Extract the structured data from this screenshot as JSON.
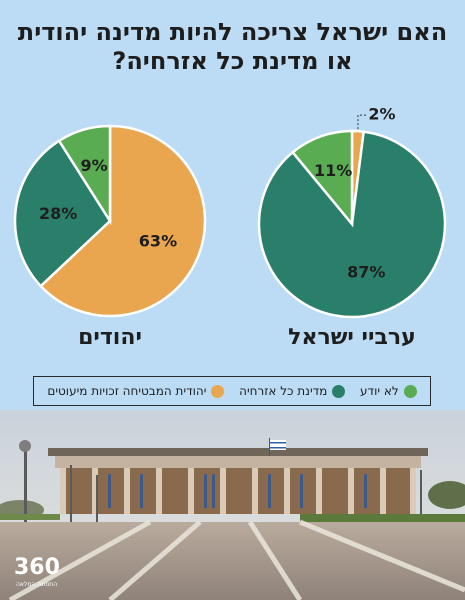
{
  "title_lines": [
    "האם ישראל צריכה להיות מדינה יהודית",
    "או מדינת כל אזרחיה?"
  ],
  "colors": {
    "orange": "#e9a64f",
    "teal": "#2a7f6a",
    "green": "#5aac52",
    "background": "#bcdcf6"
  },
  "chart_data": [
    {
      "type": "pie",
      "group": "ערביי ישראל",
      "slices": [
        {
          "category": "יהודית המבטיחה זכויות מיעוטים",
          "value": 2,
          "label": "2%",
          "color": "#e9a64f"
        },
        {
          "category": "מדינת כל אזרחיה",
          "value": 87,
          "label": "87%",
          "color": "#2a7f6a"
        },
        {
          "category": "לא יודע",
          "value": 11,
          "label": "11%",
          "color": "#5aac52"
        }
      ]
    },
    {
      "type": "pie",
      "group": "יהודים",
      "slices": [
        {
          "category": "יהודית המבטיחה זכויות מיעוטים",
          "value": 63,
          "label": "63%",
          "color": "#e9a64f"
        },
        {
          "category": "מדינת כל אזרחיה",
          "value": 28,
          "label": "28%",
          "color": "#2a7f6a"
        },
        {
          "category": "לא יודע",
          "value": 9,
          "label": "9%",
          "color": "#5aac52"
        }
      ]
    }
  ],
  "legend": [
    {
      "label": "יהודית המבטיחה זכויות מיעוטים",
      "color": "#e9a64f"
    },
    {
      "label": "מדינת כל אזרחיה",
      "color": "#2a7f6a"
    },
    {
      "label": "לא יודע",
      "color": "#5aac52"
    }
  ],
  "logo": {
    "number": "360",
    "subtitle": "התמונה המלאה",
    "icon": "logo-360-icon"
  },
  "photo": {
    "icon": "knesset-building-photo"
  }
}
